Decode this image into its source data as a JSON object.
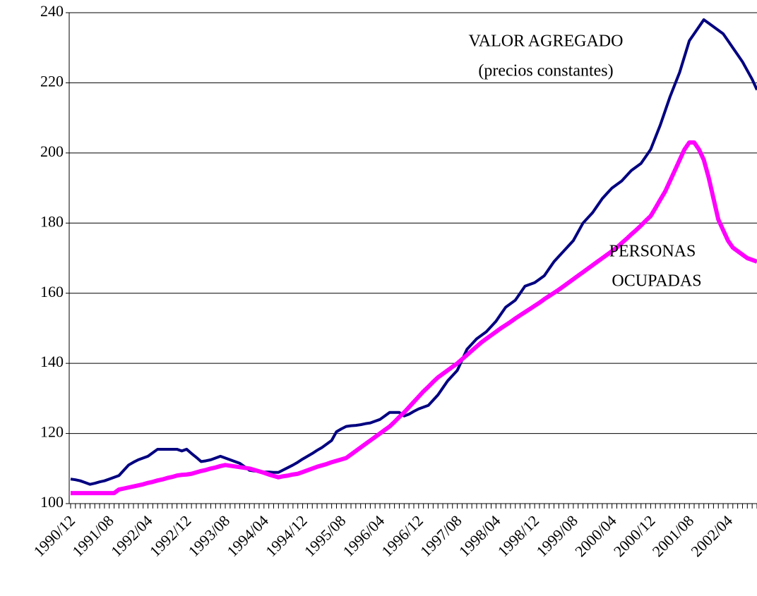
{
  "chart_data": {
    "type": "line",
    "annotations": [
      {
        "text": "VALOR AGREGADO"
      },
      {
        "text": "(precios constantes)"
      },
      {
        "text": "PERSONAS"
      },
      {
        "text": "OCUPADAS"
      }
    ],
    "categories": [
      "1990/12",
      null,
      null,
      null,
      null,
      null,
      null,
      null,
      "1991/08",
      null,
      null,
      null,
      null,
      null,
      null,
      null,
      "1992/04",
      null,
      null,
      null,
      null,
      null,
      null,
      null,
      "1992/12",
      null,
      null,
      null,
      null,
      null,
      null,
      null,
      "1993/08",
      null,
      null,
      null,
      null,
      null,
      null,
      null,
      "1994/04",
      null,
      null,
      null,
      null,
      null,
      null,
      null,
      "1994/12",
      null,
      null,
      null,
      null,
      null,
      null,
      null,
      "1995/08",
      null,
      null,
      null,
      null,
      null,
      null,
      null,
      "1996/04",
      null,
      null,
      null,
      null,
      null,
      null,
      null,
      "1996/12",
      null,
      null,
      null,
      null,
      null,
      null,
      null,
      "1997/08",
      null,
      null,
      null,
      null,
      null,
      null,
      null,
      "1998/04",
      null,
      null,
      null,
      null,
      null,
      null,
      null,
      "1998/12",
      null,
      null,
      null,
      null,
      null,
      null,
      null,
      "1999/08",
      null,
      null,
      null,
      null,
      null,
      null,
      null,
      "2000/04",
      null,
      null,
      null,
      null,
      null,
      null,
      null,
      "2000/12",
      null,
      null,
      null,
      null,
      null,
      null,
      null,
      "2001/08",
      null,
      null,
      null,
      null,
      null,
      null,
      null,
      "2002/04",
      null,
      null,
      null,
      null,
      null,
      null
    ],
    "series": [
      {
        "color": "#000080",
        "width": 4,
        "values": [
          107,
          106.8,
          106.5,
          106,
          105.5,
          105.8,
          106.2,
          106.5,
          107,
          107.5,
          108,
          109.5,
          111,
          111.8,
          112.5,
          113,
          113.5,
          114.5,
          115.5,
          115.5,
          115.5,
          115.5,
          115.5,
          115,
          115.5,
          114.3,
          113.2,
          112,
          112.2,
          112.5,
          113,
          113.5,
          113,
          112.5,
          112,
          111.5,
          110.5,
          109.5,
          109.3,
          109.2,
          109,
          109,
          108.9,
          108.9,
          109.6,
          110.3,
          111,
          111.8,
          112.7,
          113.5,
          114.3,
          115.2,
          116,
          117,
          118,
          120.5,
          121.3,
          122,
          122.2,
          122.3,
          122.5,
          122.8,
          123,
          123.5,
          124,
          125,
          126,
          126,
          126,
          125,
          125.5,
          126.3,
          127,
          127.5,
          128,
          129.5,
          131,
          133,
          135,
          136.5,
          138,
          141,
          144,
          145.5,
          147,
          148,
          149,
          150.5,
          152,
          154,
          156,
          157,
          158,
          160,
          162,
          162.5,
          163,
          164,
          165,
          167,
          169,
          170.5,
          172,
          173.5,
          175,
          177.5,
          180,
          181.5,
          183,
          185,
          187,
          188.5,
          190,
          191,
          192,
          193.5,
          195,
          196,
          197,
          199,
          201,
          204.5,
          208,
          212,
          216,
          219.5,
          223,
          227.5,
          232,
          234,
          236,
          238,
          237,
          236,
          235,
          234,
          232,
          230,
          228,
          226,
          223.5,
          221,
          218
        ]
      },
      {
        "color": "#ff00ff",
        "width": 6,
        "values": [
          103,
          103,
          103,
          103,
          103,
          103,
          103,
          103,
          103,
          103,
          104,
          104.3,
          104.6,
          104.9,
          105.2,
          105.5,
          105.9,
          106.2,
          106.6,
          106.9,
          107.3,
          107.6,
          108,
          108.2,
          108.3,
          108.5,
          108.9,
          109.3,
          109.6,
          110,
          110.3,
          110.7,
          111,
          110.8,
          110.6,
          110.4,
          110.2,
          110,
          109.6,
          109.2,
          108.8,
          108.3,
          107.9,
          107.5,
          107.8,
          108,
          108.3,
          108.5,
          109,
          109.5,
          110,
          110.5,
          110.9,
          111.3,
          111.8,
          112.2,
          112.6,
          113,
          114,
          115,
          116,
          117,
          118,
          119,
          120,
          121,
          122,
          123.3,
          124.7,
          126,
          127.5,
          129,
          130.5,
          132,
          133.3,
          134.7,
          136,
          137,
          138,
          139,
          140,
          141.2,
          142.4,
          143.6,
          144.8,
          146,
          147,
          148,
          149,
          150,
          150.9,
          151.8,
          152.8,
          153.7,
          154.6,
          155.5,
          156.4,
          157.3,
          158.3,
          159.2,
          160.1,
          161,
          162,
          163,
          164,
          165,
          166,
          167,
          168,
          169,
          170,
          171,
          172,
          173,
          174.3,
          175.5,
          176.8,
          178,
          179.3,
          180.7,
          182,
          184.3,
          186.7,
          189,
          192,
          195,
          198,
          201,
          203,
          203,
          201,
          198,
          193,
          187,
          181,
          178,
          175,
          173,
          172,
          171,
          170,
          169.5,
          169
        ]
      }
    ],
    "ylim": [
      100,
      240
    ],
    "yticks": [
      100,
      120,
      140,
      160,
      180,
      200,
      220,
      240
    ],
    "grid": true
  }
}
